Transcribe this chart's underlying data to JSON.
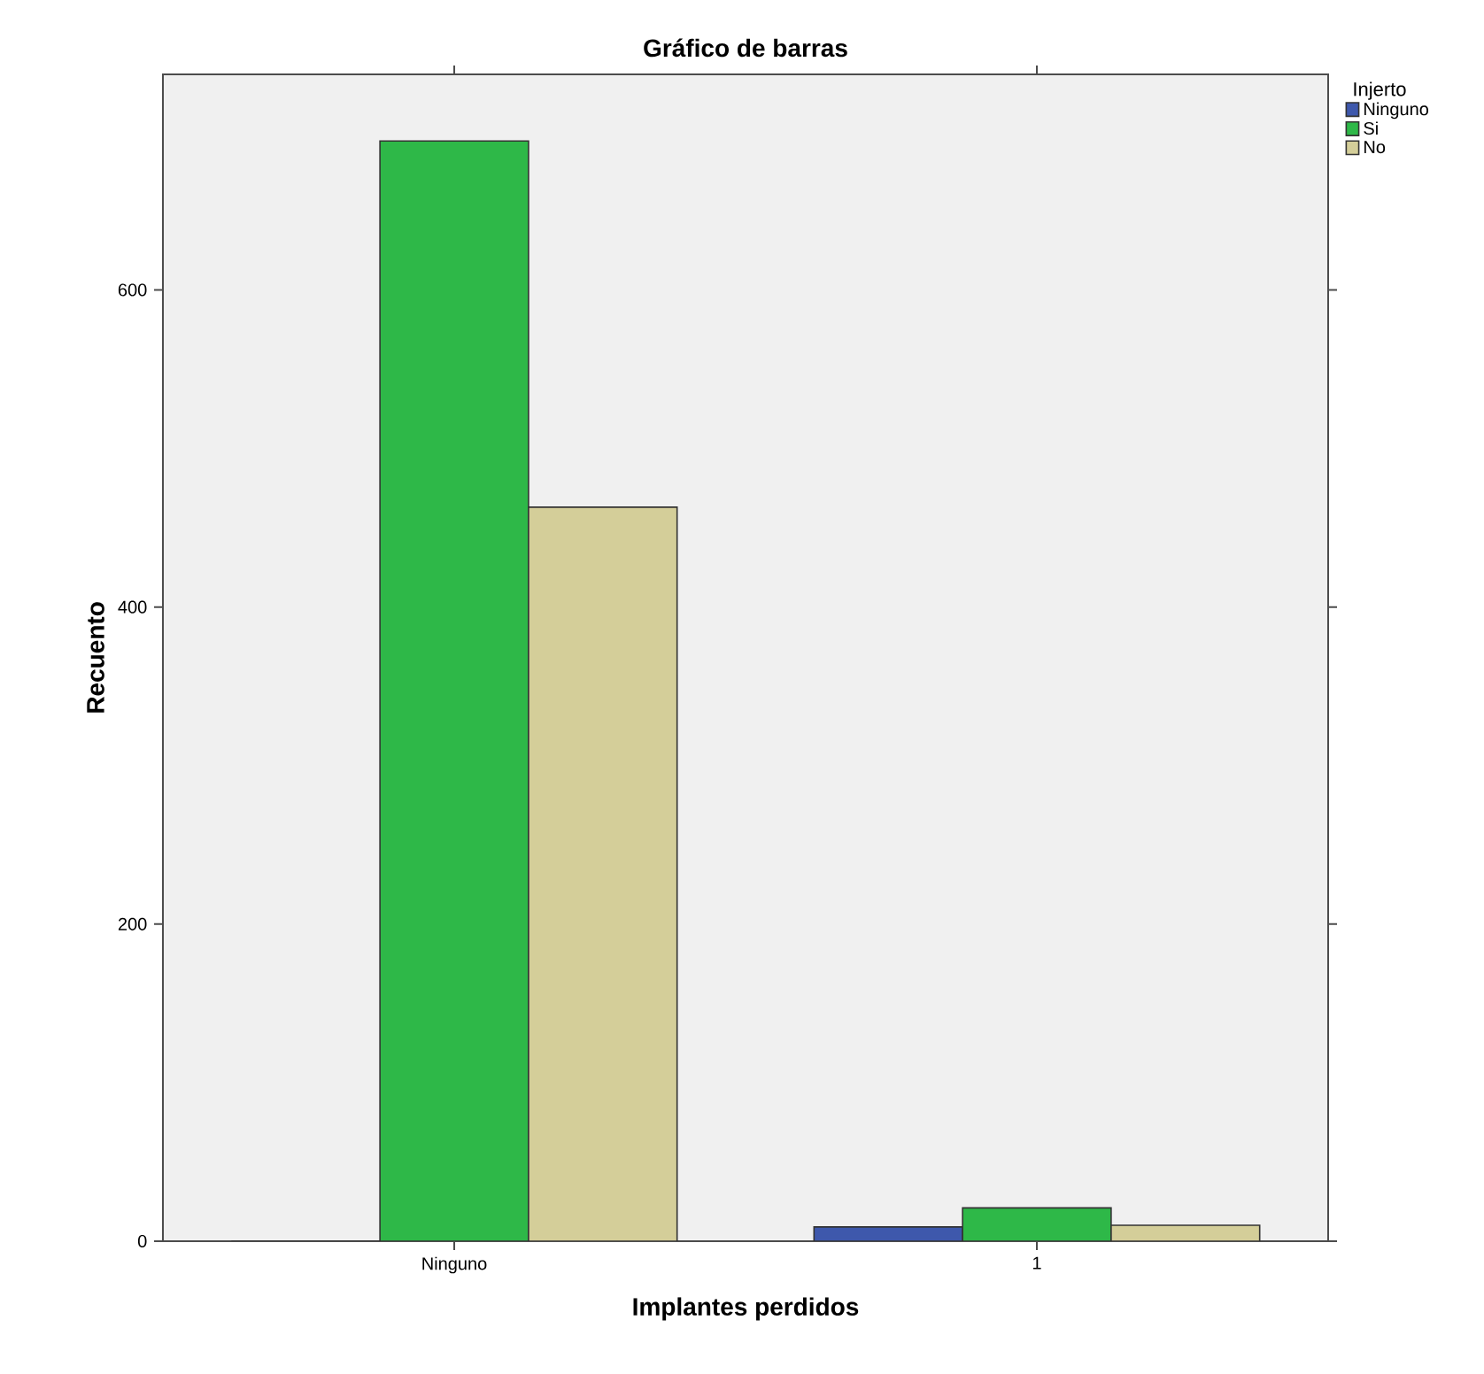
{
  "chart_data": {
    "type": "bar",
    "title": "Gráfico de barras",
    "xlabel": "Implantes perdidos",
    "ylabel": "Recuento",
    "legend_title": "Injerto",
    "categories": [
      "Ninguno",
      "1"
    ],
    "series": [
      {
        "name": "Ninguno",
        "color": "#3e58ac",
        "values": [
          0,
          9
        ]
      },
      {
        "name": "Si",
        "color": "#2eb848",
        "values": [
          694,
          21
        ]
      },
      {
        "name": "No",
        "color": "#d4ce99",
        "values": [
          463,
          10
        ]
      }
    ],
    "ylim": [
      0,
      736
    ],
    "yticks": [
      0,
      200,
      400,
      600
    ],
    "grid": false,
    "legend": "top right"
  }
}
